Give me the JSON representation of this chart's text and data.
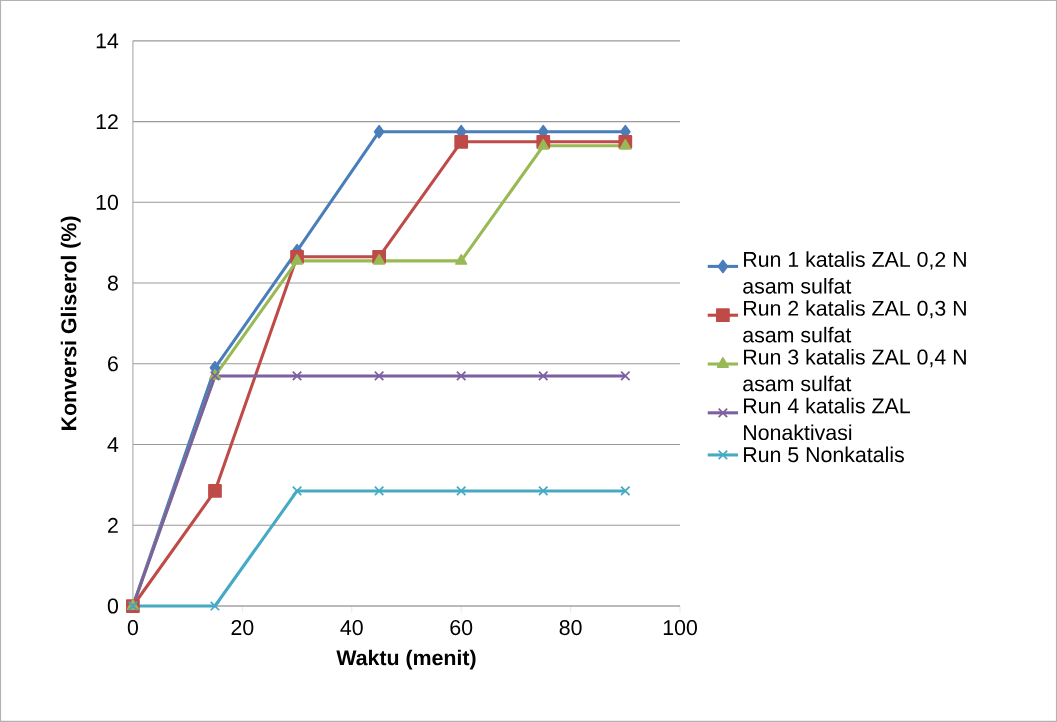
{
  "chart_data": {
    "type": "line",
    "xlabel": "Waktu (menit)",
    "ylabel": "Konversi Gliserol (%)",
    "x": [
      0,
      15,
      30,
      45,
      60,
      75,
      90
    ],
    "xlim": [
      0,
      100
    ],
    "xticks": [
      0,
      20,
      40,
      60,
      80,
      100
    ],
    "ylim": [
      0,
      14
    ],
    "yticks": [
      0,
      2,
      4,
      6,
      8,
      10,
      12,
      14
    ],
    "grid": "y",
    "legend": "right",
    "series": [
      {
        "name": "Run 1 katalis ZAL 0,2 N asam sulfat",
        "color": "#4a7ebb",
        "marker": "diamond",
        "values": [
          0,
          5.9,
          8.8,
          11.75,
          11.75,
          11.75,
          11.75
        ]
      },
      {
        "name": "Run 2 katalis ZAL 0,3 N asam sulfat",
        "color": "#be4b48",
        "marker": "square",
        "values": [
          0,
          2.85,
          8.65,
          8.65,
          11.5,
          11.5,
          11.5
        ]
      },
      {
        "name": "Run 3 katalis ZAL 0,4 N asam sulfat",
        "color": "#98b954",
        "marker": "triangle",
        "values": [
          0,
          5.7,
          8.55,
          8.55,
          8.55,
          11.4,
          11.4
        ]
      },
      {
        "name": "Run 4 katalis ZAL Nonaktivasi",
        "color": "#7d60a0",
        "marker": "cross",
        "values": [
          0,
          5.7,
          5.7,
          5.7,
          5.7,
          5.7,
          5.7
        ]
      },
      {
        "name": "Run 5 Nonkatalis",
        "color": "#46aac5",
        "marker": "cross",
        "values": [
          0,
          0,
          2.85,
          2.85,
          2.85,
          2.85,
          2.85
        ]
      }
    ]
  }
}
